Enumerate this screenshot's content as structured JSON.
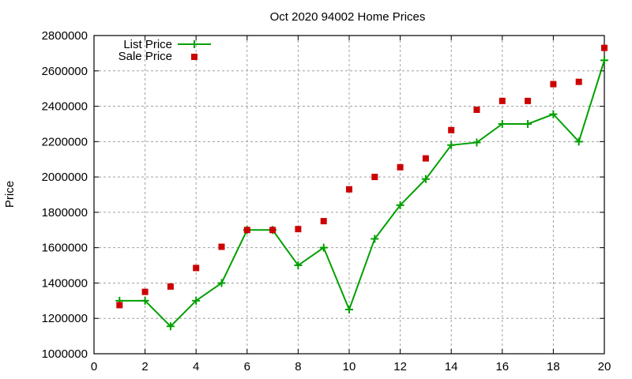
{
  "chart_data": {
    "type": "line",
    "title": "Oct 2020 94002 Home Prices",
    "xlabel": "",
    "ylabel": "Price",
    "xlim": [
      0,
      20
    ],
    "ylim": [
      1000000,
      2800000
    ],
    "xticks": [
      0,
      2,
      4,
      6,
      8,
      10,
      12,
      14,
      16,
      18,
      20
    ],
    "yticks": [
      1000000,
      1200000,
      1400000,
      1600000,
      1800000,
      2000000,
      2200000,
      2400000,
      2600000,
      2800000
    ],
    "grid": true,
    "legend_position": "top-left",
    "x": [
      1,
      2,
      3,
      4,
      5,
      6,
      7,
      8,
      9,
      10,
      11,
      12,
      13,
      14,
      15,
      16,
      17,
      18,
      19,
      20
    ],
    "series": [
      {
        "name": "List Price",
        "style": "linespoints",
        "marker": "plus",
        "color": "#00a000",
        "values": [
          1300000,
          1300000,
          1155000,
          1300000,
          1400000,
          1700000,
          1700000,
          1500000,
          1600000,
          1250000,
          1650000,
          1840000,
          1988000,
          2180000,
          2195000,
          2300000,
          2300000,
          2355000,
          2200000,
          2660000
        ]
      },
      {
        "name": "Sale Price",
        "style": "points",
        "marker": "square",
        "color": "#cc0000",
        "values": [
          1275000,
          1350000,
          1380000,
          1485000,
          1605000,
          1700000,
          1700000,
          1705000,
          1750000,
          1930000,
          2000000,
          2055000,
          2105000,
          2265000,
          2380000,
          2430000,
          2430000,
          2525000,
          2538000,
          2730000
        ]
      }
    ]
  }
}
